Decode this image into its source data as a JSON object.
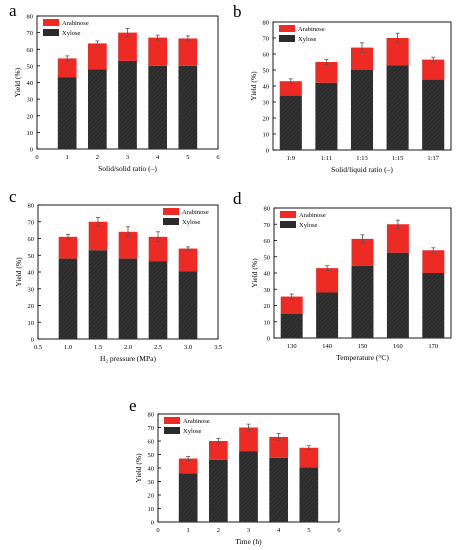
{
  "colors": {
    "xylose": "#2b2b2b",
    "arabinose": "#ee2a24",
    "error": "#555555"
  },
  "series_names": {
    "arabinose": "Arabinose",
    "xylose": "Xylose"
  },
  "chart_data": [
    {
      "panel": "a",
      "type": "bar",
      "stacked": true,
      "xlabel": "Solid/solid ratio (–)",
      "ylabel": "Yield (%)",
      "xlim": [
        0,
        6
      ],
      "ylim": [
        0,
        80
      ],
      "xticks": [
        "0",
        "1",
        "2",
        "3",
        "4",
        "5",
        "6"
      ],
      "yticks": [
        "0",
        "10",
        "20",
        "30",
        "40",
        "50",
        "60",
        "70",
        "80"
      ],
      "legend": "top-left",
      "x": [
        1,
        2,
        3,
        4,
        5
      ],
      "series": [
        {
          "name": "Xylose",
          "values": [
            43,
            48,
            53,
            50,
            50
          ]
        },
        {
          "name": "Arabinose",
          "values": [
            11.5,
            15.5,
            17,
            17,
            16.5
          ]
        }
      ],
      "error_totals": [
        1.5,
        1.5,
        2.5,
        1.5,
        1.5
      ]
    },
    {
      "panel": "b",
      "type": "bar",
      "stacked": true,
      "xlabel": "Solid/liquid ratio (–)",
      "ylabel": "Yield (%)",
      "ylim": [
        0,
        80
      ],
      "yticks": [
        "0",
        "10",
        "20",
        "30",
        "40",
        "50",
        "60",
        "70",
        "80"
      ],
      "legend": "top-left",
      "categories": [
        "1:9",
        "1:11",
        "1:13",
        "1:15",
        "1:17"
      ],
      "series": [
        {
          "name": "Xylose",
          "values": [
            34,
            42,
            50,
            53,
            44
          ]
        },
        {
          "name": "Arabinose",
          "values": [
            9,
            13,
            14,
            17,
            12.5
          ]
        }
      ],
      "error_totals": [
        1.5,
        1.5,
        3,
        3,
        1.5
      ]
    },
    {
      "panel": "c",
      "type": "bar",
      "stacked": true,
      "xlabel": "H₂ pressure (MPa)",
      "ylabel": "Yield (%)",
      "xlim": [
        0.5,
        3.5
      ],
      "ylim": [
        0,
        80
      ],
      "xticks": [
        "0.5",
        "1.0",
        "1.5",
        "2.0",
        "2.5",
        "3.0",
        "3.5"
      ],
      "yticks": [
        "0",
        "10",
        "20",
        "30",
        "40",
        "50",
        "60",
        "70",
        "80"
      ],
      "legend": "top-right",
      "x": [
        1.0,
        1.5,
        2.0,
        2.5,
        3.0
      ],
      "series": [
        {
          "name": "Xylose",
          "values": [
            48,
            53,
            48,
            46.5,
            40.5
          ]
        },
        {
          "name": "Arabinose",
          "values": [
            13,
            17,
            16,
            14.5,
            13.5
          ]
        }
      ],
      "error_totals": [
        1.5,
        2.5,
        3,
        3,
        1
      ]
    },
    {
      "panel": "d",
      "type": "bar",
      "stacked": true,
      "xlabel": "Temperature (°C)",
      "ylabel": "Yield (%)",
      "ylim": [
        0,
        80
      ],
      "yticks": [
        "0",
        "10",
        "20",
        "30",
        "40",
        "50",
        "60",
        "70",
        "80"
      ],
      "legend": "top-left",
      "categories": [
        "130",
        "140",
        "150",
        "160",
        "170"
      ],
      "series": [
        {
          "name": "Xylose",
          "values": [
            15,
            28,
            44.5,
            52.5,
            40
          ]
        },
        {
          "name": "Arabinose",
          "values": [
            10.5,
            15,
            16.5,
            17.5,
            14
          ]
        }
      ],
      "error_totals": [
        1.5,
        1.5,
        2.5,
        2.5,
        1.5
      ]
    },
    {
      "panel": "e",
      "type": "bar",
      "stacked": true,
      "xlabel": "Time (h)",
      "ylabel": "Yield (%)",
      "xlim": [
        0,
        6
      ],
      "ylim": [
        0,
        80
      ],
      "xticks": [
        "0",
        "1",
        "2",
        "3",
        "4",
        "5",
        "6"
      ],
      "yticks": [
        "0",
        "10",
        "20",
        "30",
        "40",
        "50",
        "60",
        "70",
        "80"
      ],
      "legend": "top-left",
      "x": [
        1,
        2,
        3,
        4,
        5
      ],
      "series": [
        {
          "name": "Xylose",
          "values": [
            36,
            46,
            52.5,
            47.5,
            40.5
          ]
        },
        {
          "name": "Arabinose",
          "values": [
            11,
            14,
            17.5,
            15.5,
            14.5
          ]
        }
      ],
      "error_totals": [
        1.5,
        2,
        2.5,
        2.5,
        1.5
      ]
    }
  ]
}
